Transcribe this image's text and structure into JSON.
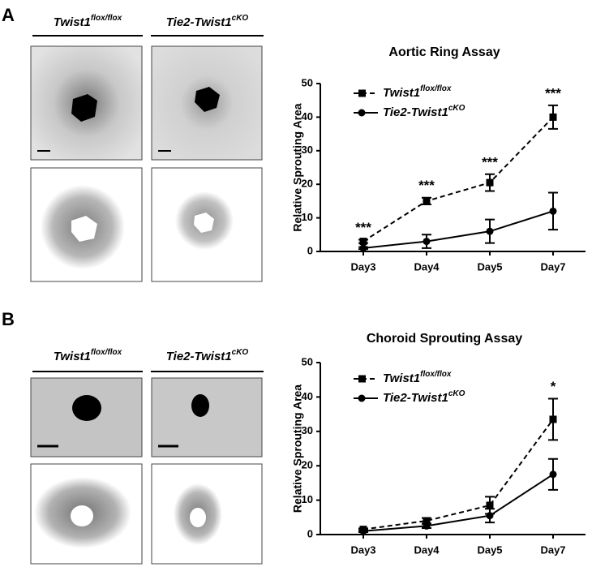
{
  "panels": [
    {
      "label": "A",
      "columns": [
        {
          "name": "Twist1",
          "name_sup": "flox/flox"
        },
        {
          "name": "Tie2-Twist1",
          "name_sup": "cKO"
        }
      ]
    },
    {
      "label": "B",
      "columns": [
        {
          "name": "Twist1",
          "name_sup": "flox/flox"
        },
        {
          "name": "Tie2-Twist1",
          "name_sup": "cKO"
        }
      ]
    }
  ],
  "chart_data": [
    {
      "type": "line",
      "title": "Aortic Ring Assay",
      "y_label": "Relative Sprouting Area",
      "categories": [
        "Day3",
        "Day4",
        "Day5",
        "Day7"
      ],
      "ylim": [
        0,
        50
      ],
      "yticks": [
        0,
        10,
        20,
        30,
        40,
        50
      ],
      "annotations": [
        "***",
        "***",
        "***",
        "***"
      ],
      "series": [
        {
          "name": "Twist1",
          "name_sup": "flox/flox",
          "color": "#000000",
          "line_style": "dashed",
          "marker": "square",
          "values": [
            3,
            15,
            20.5,
            40
          ],
          "errors": [
            0.5,
            1,
            2.5,
            3.5
          ]
        },
        {
          "name": "Tie2-Twist1",
          "name_sup": "cKO",
          "color": "#000000",
          "line_style": "solid",
          "marker": "circle",
          "values": [
            1,
            3,
            6,
            12
          ],
          "errors": [
            0.3,
            2,
            3.5,
            5.5
          ]
        }
      ]
    },
    {
      "type": "line",
      "title": "Choroid Sprouting Assay",
      "y_label": "Relative Sprouting Area",
      "categories": [
        "Day3",
        "Day4",
        "Day5",
        "Day7"
      ],
      "ylim": [
        0,
        50
      ],
      "yticks": [
        0,
        10,
        20,
        30,
        40,
        50
      ],
      "annotations": [
        null,
        null,
        null,
        "*"
      ],
      "series": [
        {
          "name": "Twist1",
          "name_sup": "flox/flox",
          "color": "#000000",
          "line_style": "dashed",
          "marker": "square",
          "values": [
            1.5,
            4,
            8.5,
            33.5
          ],
          "errors": [
            0.3,
            0.8,
            2.5,
            6
          ]
        },
        {
          "name": "Tie2-Twist1",
          "name_sup": "cKO",
          "color": "#000000",
          "line_style": "solid",
          "marker": "circle",
          "values": [
            1,
            2.5,
            5.5,
            17.5
          ],
          "errors": [
            0.3,
            0.6,
            2,
            4.5
          ]
        }
      ]
    }
  ]
}
